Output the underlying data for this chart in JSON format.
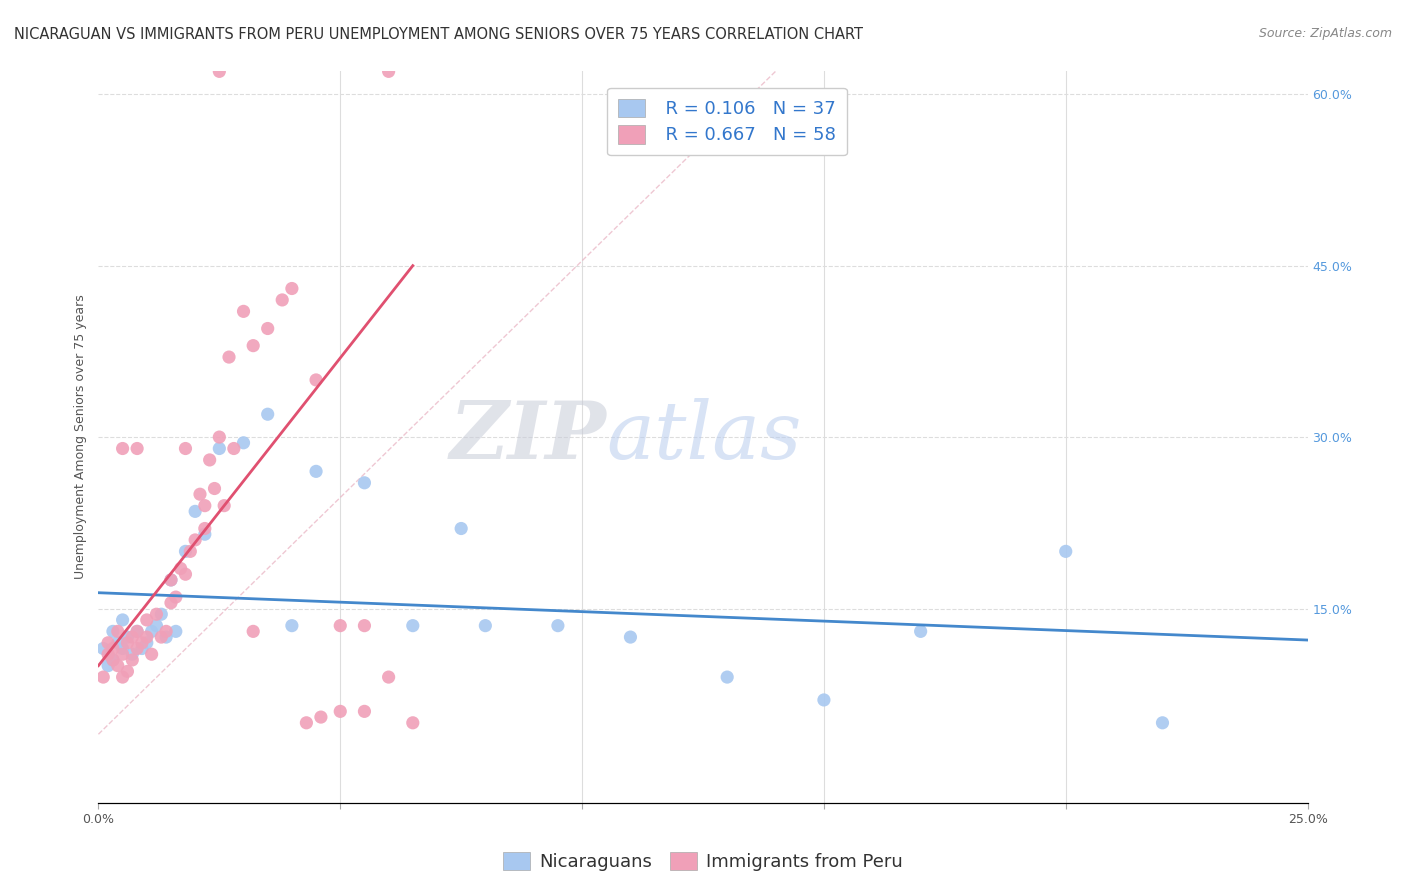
{
  "title": "NICARAGUAN VS IMMIGRANTS FROM PERU UNEMPLOYMENT AMONG SENIORS OVER 75 YEARS CORRELATION CHART",
  "source": "Source: ZipAtlas.com",
  "ylabel": "Unemployment Among Seniors over 75 years",
  "watermark_zip": "ZIP",
  "watermark_atlas": "atlas",
  "xmin": 0.0,
  "xmax": 0.25,
  "ymin": -0.02,
  "ymax": 0.62,
  "blue_color": "#a8c8f0",
  "pink_color": "#f0a0b8",
  "blue_line_color": "#4488cc",
  "pink_line_color": "#e05070",
  "legend_blue_R": "R = 0.106",
  "legend_blue_N": "N = 37",
  "legend_pink_R": "R = 0.667",
  "legend_pink_N": "N = 58",
  "title_fontsize": 10.5,
  "source_fontsize": 9,
  "label_fontsize": 9,
  "tick_fontsize": 9,
  "legend_fontsize": 13,
  "background_color": "#ffffff",
  "grid_color": "#dddddd",
  "blue_scatter_x": [
    0.001,
    0.002,
    0.003,
    0.003,
    0.004,
    0.005,
    0.005,
    0.006,
    0.007,
    0.008,
    0.009,
    0.01,
    0.011,
    0.012,
    0.013,
    0.014,
    0.015,
    0.016,
    0.018,
    0.02,
    0.022,
    0.025,
    0.03,
    0.035,
    0.04,
    0.045,
    0.055,
    0.065,
    0.08,
    0.095,
    0.11,
    0.13,
    0.15,
    0.17,
    0.22,
    0.075,
    0.2
  ],
  "blue_scatter_y": [
    0.115,
    0.1,
    0.105,
    0.13,
    0.12,
    0.14,
    0.115,
    0.125,
    0.11,
    0.13,
    0.115,
    0.12,
    0.13,
    0.135,
    0.145,
    0.125,
    0.175,
    0.13,
    0.2,
    0.235,
    0.215,
    0.29,
    0.295,
    0.32,
    0.135,
    0.27,
    0.26,
    0.135,
    0.135,
    0.135,
    0.125,
    0.09,
    0.07,
    0.13,
    0.05,
    0.22,
    0.2
  ],
  "pink_scatter_x": [
    0.001,
    0.002,
    0.002,
    0.003,
    0.003,
    0.004,
    0.004,
    0.005,
    0.005,
    0.006,
    0.006,
    0.007,
    0.007,
    0.008,
    0.008,
    0.009,
    0.01,
    0.01,
    0.011,
    0.012,
    0.013,
    0.014,
    0.015,
    0.015,
    0.016,
    0.017,
    0.018,
    0.019,
    0.02,
    0.021,
    0.022,
    0.023,
    0.024,
    0.025,
    0.027,
    0.03,
    0.032,
    0.035,
    0.038,
    0.04,
    0.043,
    0.046,
    0.05,
    0.055,
    0.06,
    0.065,
    0.025,
    0.06,
    0.028,
    0.045,
    0.05,
    0.055,
    0.032,
    0.018,
    0.022,
    0.026,
    0.008,
    0.005
  ],
  "pink_scatter_y": [
    0.09,
    0.11,
    0.12,
    0.105,
    0.115,
    0.1,
    0.13,
    0.09,
    0.11,
    0.095,
    0.12,
    0.125,
    0.105,
    0.13,
    0.115,
    0.12,
    0.125,
    0.14,
    0.11,
    0.145,
    0.125,
    0.13,
    0.155,
    0.175,
    0.16,
    0.185,
    0.18,
    0.2,
    0.21,
    0.25,
    0.24,
    0.28,
    0.255,
    0.3,
    0.37,
    0.41,
    0.38,
    0.395,
    0.42,
    0.43,
    0.05,
    0.055,
    0.06,
    0.06,
    0.09,
    0.05,
    0.62,
    0.62,
    0.29,
    0.35,
    0.135,
    0.135,
    0.13,
    0.29,
    0.22,
    0.24,
    0.29,
    0.29
  ]
}
